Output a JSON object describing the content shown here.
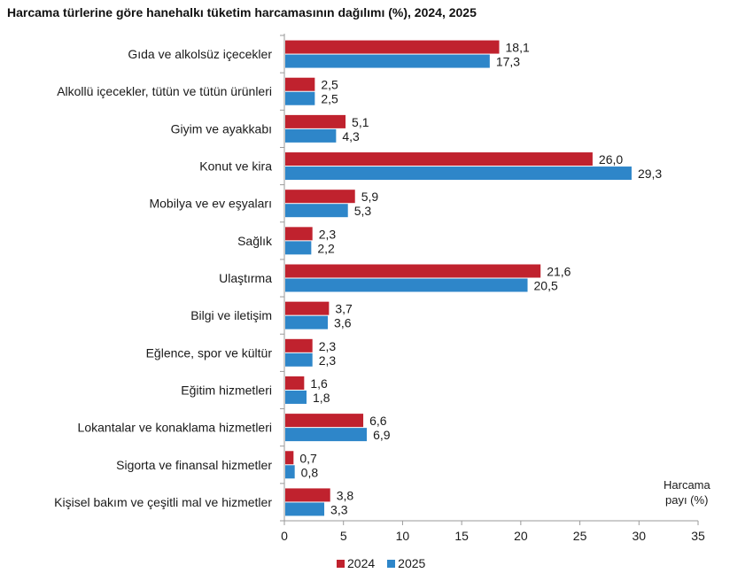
{
  "title": "Harcama türlerine göre hanehalkı tüketim harcamasının dağılımı (%), 2024, 2025",
  "chart_data": {
    "type": "bar",
    "orientation": "horizontal",
    "categories": [
      "Gıda ve alkolsüz içecekler",
      "Alkollü içecekler, tütün ve tütün ürünleri",
      "Giyim ve ayakkabı",
      "Konut ve kira",
      "Mobilya ve ev eşyaları",
      "Sağlık",
      "Ulaştırma",
      "Bilgi ve iletişim",
      "Eğlence, spor ve kültür",
      "Eğitim hizmetleri",
      "Lokantalar ve konaklama hizmetleri",
      "Sigorta ve finansal hizmetler",
      "Kişisel bakım ve çeşitli mal ve hizmetler"
    ],
    "series": [
      {
        "name": "2024",
        "color": "#c0222e",
        "values": [
          18.1,
          2.5,
          5.1,
          26.0,
          5.9,
          2.3,
          21.6,
          3.7,
          2.3,
          1.6,
          6.6,
          0.7,
          3.8
        ],
        "labels": [
          "18,1",
          "2,5",
          "5,1",
          "26,0",
          "5,9",
          "2,3",
          "21,6",
          "3,7",
          "2,3",
          "1,6",
          "6,6",
          "0,7",
          "3,8"
        ]
      },
      {
        "name": "2025",
        "color": "#2e86c9",
        "values": [
          17.3,
          2.5,
          4.3,
          29.3,
          5.3,
          2.2,
          20.5,
          3.6,
          2.3,
          1.8,
          6.9,
          0.8,
          3.3
        ],
        "labels": [
          "17,3",
          "2,5",
          "4,3",
          "29,3",
          "5,3",
          "2,2",
          "20,5",
          "3,6",
          "2,3",
          "1,8",
          "6,9",
          "0,8",
          "3,3"
        ]
      }
    ],
    "xlim": [
      0,
      35
    ],
    "xticks": [
      "0",
      "5",
      "10",
      "15",
      "20",
      "25",
      "30",
      "35"
    ],
    "xlabel_line1": "Harcama",
    "xlabel_line2": "payı  (%)",
    "legend_position": "bottom",
    "grid": false
  }
}
